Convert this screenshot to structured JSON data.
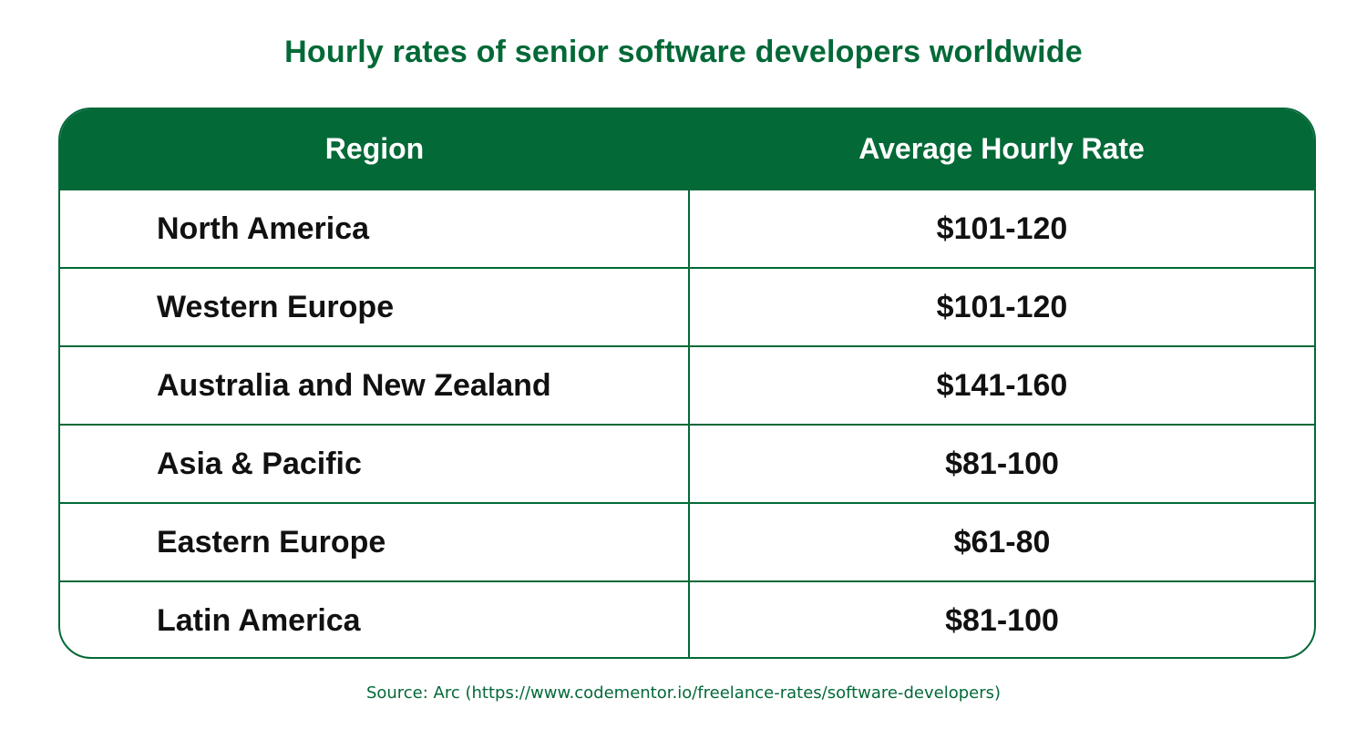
{
  "colors": {
    "brand_green": "#036937",
    "text_dark": "#111111",
    "background": "#ffffff"
  },
  "chart_data": {
    "type": "table",
    "title": "Hourly rates of senior software developers worldwide",
    "columns": [
      "Region",
      "Average Hourly Rate"
    ],
    "rows": [
      {
        "region": "North America",
        "rate": "$101-120"
      },
      {
        "region": "Western Europe",
        "rate": "$101-120"
      },
      {
        "region": "Australia and New Zealand",
        "rate": "$141-160"
      },
      {
        "region": "Asia & Pacific",
        "rate": "$81-100"
      },
      {
        "region": "Eastern Europe",
        "rate": "$61-80"
      },
      {
        "region": "Latin America",
        "rate": "$81-100"
      }
    ],
    "source": "Source: Arc (https://www.codementor.io/freelance-rates/software-developers)"
  }
}
